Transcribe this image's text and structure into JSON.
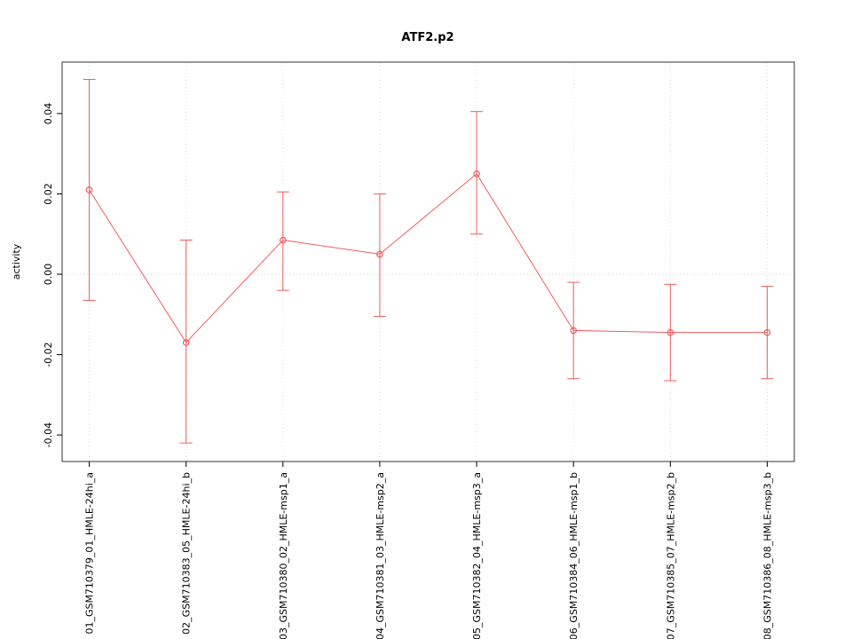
{
  "chart_data": {
    "type": "line",
    "title": "ATF2.p2",
    "ylabel": "activity",
    "xlabel": "",
    "categories": [
      "01_GSM710379_01_HMLE-24hi_a",
      "02_GSM710383_05_HMLE-24hi_b",
      "03_GSM710380_02_HMLE-msp1_a",
      "04_GSM710381_03_HMLE-msp2_a",
      "05_GSM710382_04_HMLE-msp3_a",
      "06_GSM710384_06_HMLE-msp1_b",
      "07_GSM710385_07_HMLE-msp2_b",
      "08_GSM710386_08_HMLE-msp3_b"
    ],
    "series": [
      {
        "name": "activity",
        "values": [
          0.021,
          -0.017,
          0.0085,
          0.005,
          0.025,
          -0.014,
          -0.0145,
          -0.0145
        ],
        "err_low": [
          -0.0065,
          -0.042,
          -0.004,
          -0.0105,
          0.01,
          -0.026,
          -0.0265,
          -0.026
        ],
        "err_high": [
          0.0485,
          0.0085,
          0.0205,
          0.02,
          0.0405,
          -0.002,
          -0.0025,
          -0.003
        ]
      }
    ],
    "ylim": [
      -0.0466,
      0.0528
    ],
    "yticks": [
      -0.04,
      -0.02,
      0,
      0.02,
      0.04
    ],
    "legend": "none",
    "point_style": "open-circle",
    "grid": {
      "vertical": "dotted-at-each-category",
      "zero_line": "dotted"
    },
    "colors": {
      "series": "#f25c5c",
      "grid": "#d9d9d9",
      "zero_line": "#cccccc",
      "axis": "#000000",
      "box": "#333333",
      "background": "#ffffff"
    }
  }
}
